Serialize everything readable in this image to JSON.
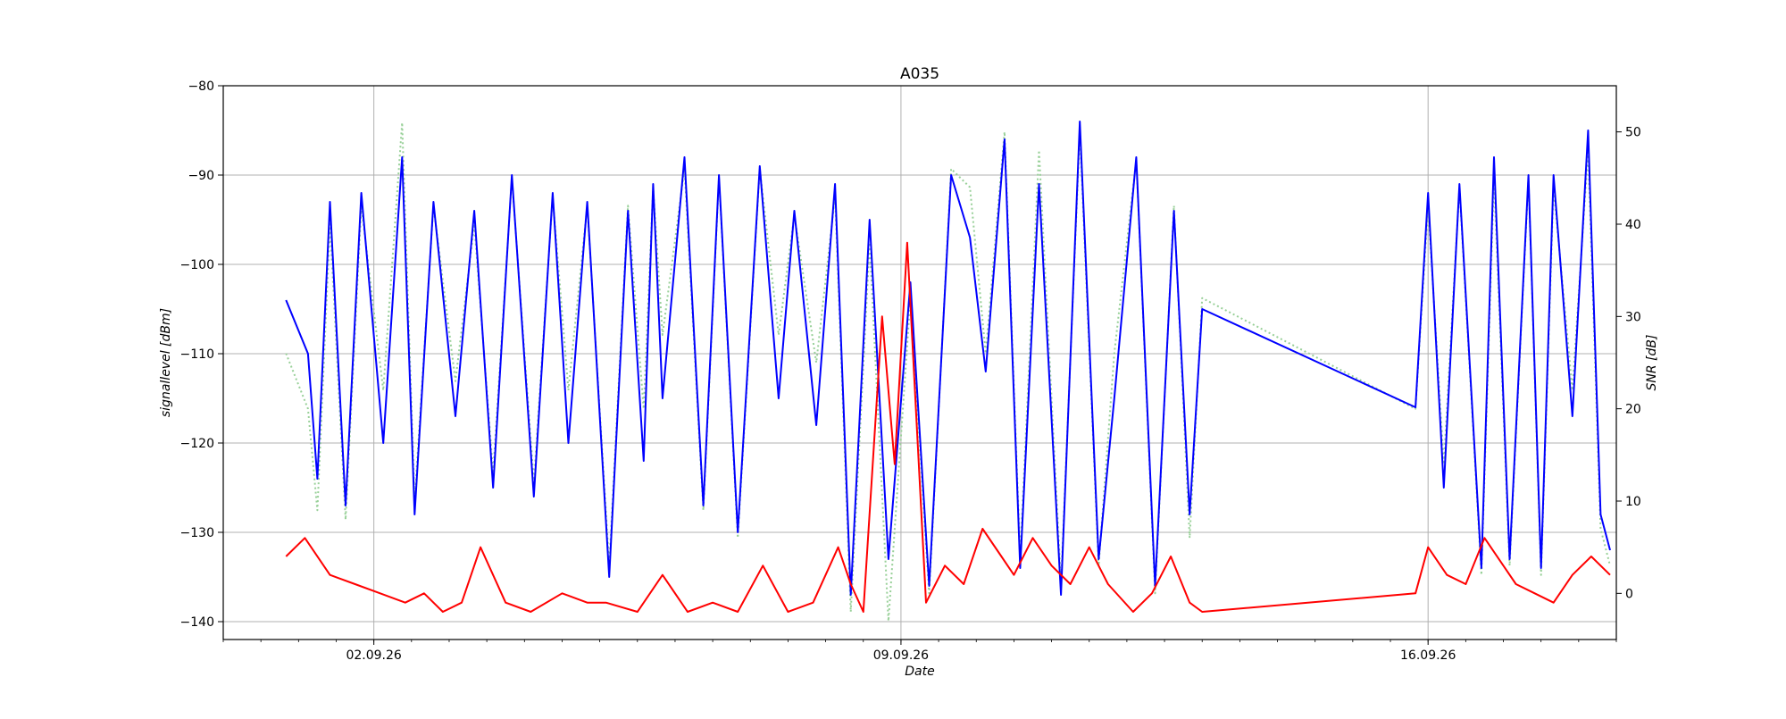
{
  "chart_data": {
    "type": "line",
    "title": "A035",
    "xlabel": "Date",
    "ylabel_left": "signallevel [dBm]",
    "ylabel_right": "SNR [dB]",
    "x_range": [
      "2026-08-31T00:00",
      "2026-09-18T12:00"
    ],
    "x_ticks": [
      {
        "date": "2026-09-02",
        "label": "02.09.26"
      },
      {
        "date": "2026-09-09",
        "label": "09.09.26"
      },
      {
        "date": "2026-09-16",
        "label": "16.09.26"
      }
    ],
    "ylim_left": [
      -142,
      -80
    ],
    "yticks_left": [
      -140,
      -130,
      -120,
      -110,
      -100,
      -90,
      -80
    ],
    "ylim_right": [
      -5,
      55
    ],
    "yticks_right": [
      0,
      10,
      20,
      30,
      40,
      50
    ],
    "grid": true,
    "legend": "none",
    "colors": {
      "signal": "#0000ff",
      "snr_dotted": "#98d098",
      "red": "#ff0000",
      "grid": "#b0b0b0"
    },
    "series": [
      {
        "axis": "left",
        "style": "solid",
        "color": "#0000ff",
        "x": [
          "2026-08-31T20:00",
          "2026-09-01T03:00",
          "2026-09-01T06:00",
          "2026-09-01T10:00",
          "2026-09-01T15:00",
          "2026-09-01T20:00",
          "2026-09-02T03:00",
          "2026-09-02T09:00",
          "2026-09-02T13:00",
          "2026-09-02T19:00",
          "2026-09-03T02:00",
          "2026-09-03T08:00",
          "2026-09-03T14:00",
          "2026-09-03T20:00",
          "2026-09-04T03:00",
          "2026-09-04T09:00",
          "2026-09-04T14:00",
          "2026-09-04T20:00",
          "2026-09-05T03:00",
          "2026-09-05T09:00",
          "2026-09-05T14:00",
          "2026-09-05T17:00",
          "2026-09-05T20:00",
          "2026-09-06T03:00",
          "2026-09-06T09:00",
          "2026-09-06T14:00",
          "2026-09-06T20:00",
          "2026-09-07T03:00",
          "2026-09-07T09:00",
          "2026-09-07T14:00",
          "2026-09-07T21:00",
          "2026-09-08T03:00",
          "2026-09-08T08:00",
          "2026-09-08T14:00",
          "2026-09-08T20:00",
          "2026-09-09T03:00",
          "2026-09-09T09:00",
          "2026-09-09T16:00",
          "2026-09-09T22:00",
          "2026-09-10T03:00",
          "2026-09-10T09:00",
          "2026-09-10T14:00",
          "2026-09-10T20:00",
          "2026-09-11T03:00",
          "2026-09-11T09:00",
          "2026-09-11T15:00",
          "2026-09-11T20:00",
          "2026-09-12T03:00",
          "2026-09-12T09:00",
          "2026-09-12T15:00",
          "2026-09-12T20:00",
          "2026-09-13T00:00",
          "2026-09-15T20:00",
          "2026-09-16T00:00",
          "2026-09-16T05:00",
          "2026-09-16T10:00",
          "2026-09-16T17:00",
          "2026-09-16T21:00",
          "2026-09-17T02:00",
          "2026-09-17T08:00",
          "2026-09-17T12:00",
          "2026-09-17T16:00",
          "2026-09-17T22:00",
          "2026-09-18T03:00",
          "2026-09-18T07:00",
          "2026-09-18T10:00"
        ],
        "values": [
          -104,
          -110,
          -124,
          -93,
          -127,
          -92,
          -120,
          -88,
          -128,
          -93,
          -117,
          -94,
          -125,
          -90,
          -126,
          -92,
          -120,
          -93,
          -135,
          -94,
          -122,
          -91,
          -115,
          -88,
          -127,
          -90,
          -130,
          -89,
          -115,
          -94,
          -118,
          -91,
          -137,
          -95,
          -133,
          -102,
          -136,
          -90,
          -97,
          -112,
          -86,
          -134,
          -91,
          -137,
          -84,
          -133,
          -115,
          -88,
          -136,
          -94,
          -128,
          -105,
          -116,
          -92,
          -125,
          -91,
          -134,
          -88,
          -133,
          -90,
          -134,
          -90,
          -117,
          -85,
          -128,
          -132
        ]
      },
      {
        "axis": "right",
        "style": "dotted",
        "color": "#98d098",
        "x": [
          "2026-08-31T20:00",
          "2026-09-01T03:00",
          "2026-09-01T06:00",
          "2026-09-01T10:00",
          "2026-09-01T15:00",
          "2026-09-01T20:00",
          "2026-09-02T03:00",
          "2026-09-02T09:00",
          "2026-09-02T13:00",
          "2026-09-02T19:00",
          "2026-09-03T02:00",
          "2026-09-03T08:00",
          "2026-09-03T14:00",
          "2026-09-03T20:00",
          "2026-09-04T03:00",
          "2026-09-04T09:00",
          "2026-09-04T14:00",
          "2026-09-04T20:00",
          "2026-09-05T03:00",
          "2026-09-05T09:00",
          "2026-09-05T14:00",
          "2026-09-05T17:00",
          "2026-09-05T20:00",
          "2026-09-06T03:00",
          "2026-09-06T09:00",
          "2026-09-06T14:00",
          "2026-09-06T20:00",
          "2026-09-07T03:00",
          "2026-09-07T09:00",
          "2026-09-07T14:00",
          "2026-09-07T21:00",
          "2026-09-08T03:00",
          "2026-09-08T08:00",
          "2026-09-08T14:00",
          "2026-09-08T20:00",
          "2026-09-09T03:00",
          "2026-09-09T09:00",
          "2026-09-09T16:00",
          "2026-09-09T22:00",
          "2026-09-10T03:00",
          "2026-09-10T09:00",
          "2026-09-10T14:00",
          "2026-09-10T20:00",
          "2026-09-11T03:00",
          "2026-09-11T09:00",
          "2026-09-11T15:00",
          "2026-09-11T20:00",
          "2026-09-12T03:00",
          "2026-09-12T09:00",
          "2026-09-12T15:00",
          "2026-09-12T20:00",
          "2026-09-13T00:00",
          "2026-09-15T20:00",
          "2026-09-16T00:00",
          "2026-09-16T05:00",
          "2026-09-16T10:00",
          "2026-09-16T17:00",
          "2026-09-16T21:00",
          "2026-09-17T02:00",
          "2026-09-17T08:00",
          "2026-09-17T12:00",
          "2026-09-17T16:00",
          "2026-09-17T22:00",
          "2026-09-18T03:00",
          "2026-09-18T07:00",
          "2026-09-18T10:00"
        ],
        "values": [
          26,
          20,
          9,
          40,
          8,
          42,
          22,
          51,
          10,
          42,
          23,
          40,
          13,
          45,
          12,
          43,
          22,
          42,
          3,
          42,
          20,
          44,
          28,
          46,
          9,
          45,
          6,
          46,
          28,
          41,
          25,
          43,
          -2,
          38,
          -3,
          32,
          0,
          46,
          44,
          26,
          50,
          4,
          48,
          1,
          50,
          3,
          26,
          47,
          0,
          42,
          6,
          32,
          20,
          42,
          14,
          44,
          2,
          45,
          3,
          45,
          2,
          44,
          22,
          48,
          7,
          3
        ]
      },
      {
        "axis": "right",
        "style": "solid",
        "color": "#ff0000",
        "x": [
          "2026-08-31T20:00",
          "2026-09-01T02:00",
          "2026-09-01T10:00",
          "2026-09-01T18:00",
          "2026-09-02T02:00",
          "2026-09-02T10:00",
          "2026-09-02T16:00",
          "2026-09-02T22:00",
          "2026-09-03T04:00",
          "2026-09-03T10:00",
          "2026-09-03T18:00",
          "2026-09-04T02:00",
          "2026-09-04T12:00",
          "2026-09-04T20:00",
          "2026-09-05T02:00",
          "2026-09-05T12:00",
          "2026-09-05T20:00",
          "2026-09-06T04:00",
          "2026-09-06T12:00",
          "2026-09-06T20:00",
          "2026-09-07T04:00",
          "2026-09-07T12:00",
          "2026-09-07T20:00",
          "2026-09-08T04:00",
          "2026-09-08T08:00",
          "2026-09-08T12:00",
          "2026-09-08T18:00",
          "2026-09-08T22:00",
          "2026-09-09T02:00",
          "2026-09-09T08:00",
          "2026-09-09T14:00",
          "2026-09-09T20:00",
          "2026-09-10T02:00",
          "2026-09-10T08:00",
          "2026-09-10T12:00",
          "2026-09-10T18:00",
          "2026-09-11T00:00",
          "2026-09-11T06:00",
          "2026-09-11T12:00",
          "2026-09-11T18:00",
          "2026-09-12T02:00",
          "2026-09-12T08:00",
          "2026-09-12T14:00",
          "2026-09-12T20:00",
          "2026-09-13T00:00",
          "2026-09-15T20:00",
          "2026-09-16T00:00",
          "2026-09-16T06:00",
          "2026-09-16T12:00",
          "2026-09-16T18:00",
          "2026-09-17T00:00",
          "2026-09-17T04:00",
          "2026-09-17T10:00",
          "2026-09-17T16:00",
          "2026-09-17T22:00",
          "2026-09-18T04:00",
          "2026-09-18T10:00"
        ],
        "values": [
          4,
          6,
          2,
          1,
          0,
          -1,
          0,
          -2,
          -1,
          5,
          -1,
          -2,
          0,
          -1,
          -1,
          -2,
          2,
          -2,
          -1,
          -2,
          3,
          -2,
          -1,
          5,
          1,
          -2,
          30,
          14,
          38,
          -1,
          3,
          1,
          7,
          4,
          2,
          6,
          3,
          1,
          5,
          1,
          -2,
          0,
          4,
          -1,
          -2,
          0,
          5,
          2,
          1,
          6,
          3,
          1,
          0,
          -1,
          2,
          4,
          2
        ]
      }
    ]
  }
}
